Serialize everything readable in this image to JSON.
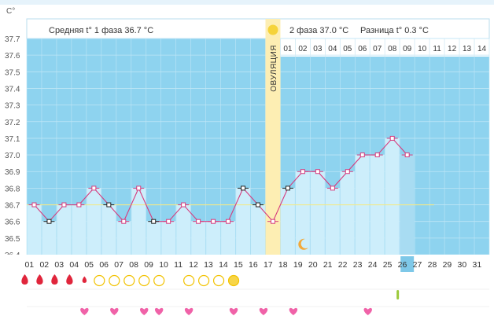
{
  "chart_data": {
    "type": "line",
    "y_unit": "C°",
    "ylim": [
      36.4,
      37.7
    ],
    "yticks": [
      "37.7",
      "37.6",
      "37.5",
      "37.4",
      "37.3",
      "37.2",
      "37.1",
      "37.0",
      "36.9",
      "36.8",
      "36.7",
      "36.6",
      "36.5",
      "36.4"
    ],
    "header": {
      "phase1_label": "Средняя t° 1 фаза 36.7 °C",
      "phase2_label": "2 фаза 37.0 °C",
      "difference_label": "Разница t° 0.3 °C"
    },
    "ovulation_label": "ОВУЛЯЦИЯ",
    "ovulation_day": "17",
    "days": [
      "01",
      "02",
      "03",
      "04",
      "05",
      "06",
      "07",
      "08",
      "09",
      "10",
      "11",
      "12",
      "13",
      "14",
      "15",
      "16",
      "17",
      "18",
      "19",
      "20",
      "21",
      "22",
      "23",
      "24",
      "25",
      "26",
      "27",
      "28",
      "29",
      "30",
      "31"
    ],
    "series": [
      {
        "values": [
          36.7,
          36.6,
          36.7,
          36.7,
          36.8,
          36.7,
          36.6,
          36.8,
          36.6,
          36.6,
          36.7,
          36.6,
          36.6,
          36.6,
          36.8,
          36.7,
          36.6,
          36.8,
          36.9,
          36.9,
          36.8,
          36.9,
          37.0,
          37.0,
          37.1,
          37.0,
          null,
          null,
          null,
          null,
          null
        ]
      }
    ],
    "black_marker_days": [
      "02",
      "06",
      "09",
      "15",
      "16",
      "18"
    ],
    "coverline": 36.7,
    "phase2_days": [
      "01",
      "02",
      "03",
      "04",
      "05",
      "06",
      "07",
      "08",
      "09",
      "10",
      "11",
      "12",
      "13",
      "14"
    ],
    "today": "26",
    "moon_day": "19",
    "bleeding": [
      {
        "day": "01",
        "type": "drop"
      },
      {
        "day": "02",
        "type": "drop"
      },
      {
        "day": "03",
        "type": "drop"
      },
      {
        "day": "04",
        "type": "drop"
      },
      {
        "day": "05",
        "type": "small-drop"
      }
    ],
    "circles": [
      {
        "day": "06",
        "type": "open"
      },
      {
        "day": "07",
        "type": "open"
      },
      {
        "day": "08",
        "type": "open"
      },
      {
        "day": "09",
        "type": "open"
      },
      {
        "day": "10",
        "type": "open"
      },
      {
        "day": "12",
        "type": "open"
      },
      {
        "day": "13",
        "type": "open"
      },
      {
        "day": "14",
        "type": "open"
      },
      {
        "day": "15",
        "type": "filled"
      }
    ],
    "test_day": "26",
    "hearts": [
      "05",
      "07",
      "09",
      "10",
      "12",
      "15",
      "17",
      "19",
      "24"
    ],
    "colors": {
      "plot_bg": "#8ed3ef",
      "bar_fill": "#cdeefb",
      "bar_today": "#a8dcf2",
      "line": "#d63b7d",
      "marker_fill": "#ffffff",
      "marker_pink": "#d63b7d",
      "marker_black": "#222222",
      "ovulation_band": "#fdeeb3",
      "coverline": "#f2e98a",
      "header_bg": "#ffffff",
      "blood": "#e0253b",
      "circle_stroke": "#f2c200",
      "circle_fill": "#f7d548",
      "heart": "#f062a8",
      "moon": "#f2a93b",
      "test": "#9bc93a",
      "today_bg": "#7ec8e8"
    }
  }
}
